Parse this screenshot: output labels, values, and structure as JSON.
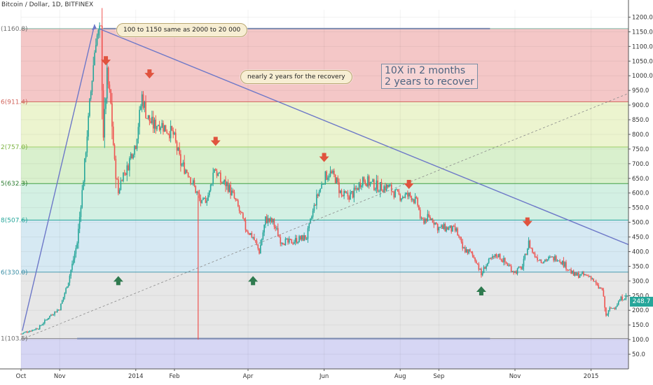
{
  "header": {
    "symbol_line": "Bitcoin / Dollar, 1D, BITFINEX"
  },
  "annotations": {
    "bubble_1": "100 to 1150 same as 2000 to 20 000",
    "bubble_2": "nearly 2 years for the recovery",
    "box_note": "10X in 2 months\n2 years to recover"
  },
  "price_tag": "248.7",
  "colors": {
    "up": "#26a69a",
    "down": "#ef5350",
    "trendline": "#6d78c8",
    "arrow_down": "#e0533e",
    "arrow_up": "#2f7a4f"
  },
  "chart_data": {
    "type": "candlestick",
    "instrument": "Bitcoin / Dollar, 1D, BITFINEX",
    "y_axis": {
      "range": [
        0,
        1225
      ],
      "ticks": [
        50,
        100,
        150,
        200,
        250,
        300,
        350,
        400,
        450,
        500,
        550,
        600,
        650,
        700,
        750,
        800,
        850,
        900,
        950,
        1000,
        1050,
        1100,
        1150,
        1200
      ],
      "tick_labels": [
        "50.0",
        "100.0",
        "150.0",
        "200.0",
        "250.0",
        "300.0",
        "350.0",
        "400.0",
        "450.0",
        "500.0",
        "550.0",
        "600.0",
        "650.0",
        "700.0",
        "750.0",
        "800.0",
        "850.0",
        "900.0",
        "950.0",
        "1000.0",
        "1050.0",
        "1100.0",
        "1150.0",
        "1200.0"
      ]
    },
    "x_axis": {
      "range": [
        "2013-10-01",
        "2015-01-31"
      ],
      "ticks": [
        "2013-10-01",
        "2013-11-01",
        "2014-01-01",
        "2014-02-01",
        "2014-04-01",
        "2014-06-01",
        "2014-08-01",
        "2014-09-01",
        "2014-11-01",
        "2015-01-01"
      ],
      "tick_labels": [
        "Oct",
        "Nov",
        "2014",
        "Feb",
        "Apr",
        "Jun",
        "Aug",
        "Sep",
        "Nov",
        "2015"
      ]
    },
    "fib_levels": [
      {
        "value": 1160.8,
        "label": "(1160.8)",
        "line": "#7fb8a6",
        "text_color": "#707070"
      },
      {
        "value": 911.4,
        "label": "6(911.4)",
        "line": "#d1645c",
        "text_color": "#d1645c"
      },
      {
        "value": 757.0,
        "label": "2(757.0)",
        "line": "#9ccc65",
        "text_color": "#7cb342"
      },
      {
        "value": 632.3,
        "label": "5(632.3)",
        "line": "#43a047",
        "text_color": "#2e7d32"
      },
      {
        "value": 507.6,
        "label": "8(507.6)",
        "line": "#26a69a",
        "text_color": "#26a69a"
      },
      {
        "value": 330.0,
        "label": "6(330.0)",
        "line": "#4a9ab0",
        "text_color": "#3b8ea5"
      },
      {
        "value": 103.5,
        "label": "1(103.5)",
        "line": "#888888",
        "text_color": "#707070"
      }
    ],
    "fib_bands": [
      {
        "from": 1160.8,
        "to": 911.4,
        "color": "#f4c7c7"
      },
      {
        "from": 911.4,
        "to": 757.0,
        "color": "#ecf4cf"
      },
      {
        "from": 757.0,
        "to": 632.3,
        "color": "#d9f0cd"
      },
      {
        "from": 632.3,
        "to": 507.6,
        "color": "#d3f0e3"
      },
      {
        "from": 507.6,
        "to": 330.0,
        "color": "#d6e9f3"
      },
      {
        "from": 330.0,
        "to": 103.5,
        "color": "#e7e7e7"
      },
      {
        "from": 103.5,
        "to": 0,
        "color": "#d6d6f4"
      }
    ],
    "price_path": [
      [
        "2013-10-01",
        120
      ],
      [
        "2013-10-15",
        140
      ],
      [
        "2013-10-25",
        185
      ],
      [
        "2013-11-01",
        205
      ],
      [
        "2013-11-08",
        300
      ],
      [
        "2013-11-15",
        430
      ],
      [
        "2013-11-20",
        650
      ],
      [
        "2013-11-25",
        900
      ],
      [
        "2013-11-30",
        1130
      ],
      [
        "2013-12-04",
        1150
      ],
      [
        "2013-12-06",
        800
      ],
      [
        "2013-12-09",
        1000
      ],
      [
        "2013-12-12",
        900
      ],
      [
        "2013-12-15",
        700
      ],
      [
        "2013-12-18",
        600
      ],
      [
        "2013-12-21",
        660
      ],
      [
        "2013-12-25",
        680
      ],
      [
        "2013-12-28",
        730
      ],
      [
        "2014-01-01",
        770
      ],
      [
        "2014-01-06",
        930
      ],
      [
        "2014-01-10",
        860
      ],
      [
        "2014-01-15",
        830
      ],
      [
        "2014-01-20",
        840
      ],
      [
        "2014-01-25",
        820
      ],
      [
        "2014-01-31",
        800
      ],
      [
        "2014-02-06",
        700
      ],
      [
        "2014-02-12",
        670
      ],
      [
        "2014-02-17",
        620
      ],
      [
        "2014-02-23",
        560
      ],
      [
        "2014-03-01",
        600
      ],
      [
        "2014-03-05",
        690
      ],
      [
        "2014-03-10",
        640
      ],
      [
        "2014-03-15",
        630
      ],
      [
        "2014-03-20",
        590
      ],
      [
        "2014-03-25",
        540
      ],
      [
        "2014-03-30",
        480
      ],
      [
        "2014-04-05",
        450
      ],
      [
        "2014-04-10",
        400
      ],
      [
        "2014-04-15",
        510
      ],
      [
        "2014-04-21",
        500
      ],
      [
        "2014-04-27",
        440
      ],
      [
        "2014-05-03",
        430
      ],
      [
        "2014-05-10",
        440
      ],
      [
        "2014-05-18",
        450
      ],
      [
        "2014-05-25",
        570
      ],
      [
        "2014-06-01",
        650
      ],
      [
        "2014-06-05",
        670
      ],
      [
        "2014-06-10",
        650
      ],
      [
        "2014-06-15",
        590
      ],
      [
        "2014-06-20",
        590
      ],
      [
        "2014-06-25",
        600
      ],
      [
        "2014-07-02",
        650
      ],
      [
        "2014-07-09",
        630
      ],
      [
        "2014-07-16",
        620
      ],
      [
        "2014-07-23",
        620
      ],
      [
        "2014-07-30",
        590
      ],
      [
        "2014-08-05",
        590
      ],
      [
        "2014-08-10",
        590
      ],
      [
        "2014-08-15",
        560
      ],
      [
        "2014-08-18",
        500
      ],
      [
        "2014-08-22",
        515
      ],
      [
        "2014-08-27",
        510
      ],
      [
        "2014-09-01",
        480
      ],
      [
        "2014-09-08",
        480
      ],
      [
        "2014-09-15",
        470
      ],
      [
        "2014-09-20",
        410
      ],
      [
        "2014-09-25",
        400
      ],
      [
        "2014-10-01",
        370
      ],
      [
        "2014-10-05",
        320
      ],
      [
        "2014-10-08",
        350
      ],
      [
        "2014-10-12",
        370
      ],
      [
        "2014-10-18",
        390
      ],
      [
        "2014-10-25",
        360
      ],
      [
        "2014-11-01",
        330
      ],
      [
        "2014-11-07",
        350
      ],
      [
        "2014-11-12",
        430
      ],
      [
        "2014-11-16",
        390
      ],
      [
        "2014-11-22",
        370
      ],
      [
        "2014-11-28",
        375
      ],
      [
        "2014-12-05",
        380
      ],
      [
        "2014-12-12",
        350
      ],
      [
        "2014-12-18",
        320
      ],
      [
        "2014-12-25",
        320
      ],
      [
        "2015-01-01",
        315
      ],
      [
        "2015-01-06",
        280
      ],
      [
        "2015-01-10",
        270
      ],
      [
        "2015-01-13",
        180
      ],
      [
        "2015-01-16",
        205
      ],
      [
        "2015-01-20",
        210
      ],
      [
        "2015-01-25",
        240
      ],
      [
        "2015-01-31",
        248.7
      ]
    ],
    "trendlines": [
      {
        "name": "rise",
        "from": [
          "2013-10-02",
          130
        ],
        "to": [
          "2013-11-29",
          1175
        ],
        "style": "solid"
      },
      {
        "name": "descending",
        "from": [
          "2013-12-03",
          1160
        ],
        "to": [
          "2015-01-31",
          424
        ],
        "style": "solid"
      },
      {
        "name": "ascending",
        "from": [
          "2013-10-01",
          100
        ],
        "to": [
          "2015-01-31",
          940
        ],
        "style": "dashed"
      }
    ],
    "horizontal_segments": [
      {
        "y": 1160.8,
        "from": "2013-12-06",
        "to": "2014-10-12"
      },
      {
        "y": 103.5,
        "from": "2013-11-15",
        "to": "2014-10-12"
      }
    ],
    "wick_spikes": [
      {
        "date": "2014-02-20",
        "low": 100,
        "high": 590
      }
    ],
    "signals": [
      {
        "type": "down",
        "date": "2013-12-08",
        "value": 1050
      },
      {
        "type": "down",
        "date": "2014-01-12",
        "value": 1005
      },
      {
        "type": "down",
        "date": "2014-03-06",
        "value": 775
      },
      {
        "type": "down",
        "date": "2014-06-01",
        "value": 720
      },
      {
        "type": "down",
        "date": "2014-08-08",
        "value": 628
      },
      {
        "type": "down",
        "date": "2014-11-11",
        "value": 500
      },
      {
        "type": "up",
        "date": "2013-12-18",
        "value": 300
      },
      {
        "type": "up",
        "date": "2014-04-05",
        "value": 300
      },
      {
        "type": "up",
        "date": "2014-10-05",
        "value": 265
      }
    ],
    "last_price": 248.7
  }
}
